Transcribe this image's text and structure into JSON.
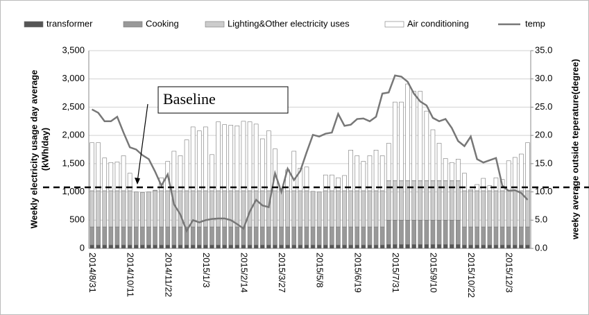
{
  "chart_data": {
    "type": "stacked_bar_line",
    "categories": [
      "2014/8/31",
      null,
      null,
      null,
      null,
      null,
      "2014/10/11",
      null,
      null,
      null,
      null,
      null,
      "2014/11/22",
      null,
      null,
      null,
      null,
      null,
      "2015/1/3",
      null,
      null,
      null,
      null,
      null,
      "2015/2/14",
      null,
      null,
      null,
      null,
      null,
      "2015/3/27",
      null,
      null,
      null,
      null,
      null,
      "2015/5/8",
      null,
      null,
      null,
      null,
      null,
      "2015/6/19",
      null,
      null,
      null,
      null,
      null,
      "2015/7/31",
      null,
      null,
      null,
      null,
      null,
      "2015/9/10",
      null,
      null,
      null,
      null,
      null,
      "2015/10/22",
      null,
      null,
      null,
      null,
      null,
      "2015/12/3",
      null,
      null,
      null
    ],
    "series": [
      {
        "name": "transformer",
        "color": "#555555",
        "values": [
          60,
          60,
          60,
          60,
          60,
          60,
          60,
          60,
          60,
          60,
          60,
          60,
          60,
          60,
          60,
          60,
          60,
          60,
          60,
          60,
          60,
          60,
          60,
          60,
          60,
          60,
          60,
          60,
          60,
          60,
          60,
          60,
          60,
          60,
          60,
          60,
          60,
          60,
          60,
          60,
          60,
          60,
          60,
          60,
          60,
          60,
          60,
          70,
          70,
          70,
          70,
          70,
          70,
          70,
          70,
          70,
          70,
          70,
          70,
          60,
          60,
          60,
          60,
          60,
          60,
          60,
          60,
          60,
          60,
          60
        ]
      },
      {
        "name": "Cooking",
        "color": "#999999",
        "values": [
          320,
          320,
          320,
          320,
          320,
          320,
          320,
          320,
          320,
          320,
          320,
          320,
          320,
          320,
          320,
          320,
          320,
          320,
          320,
          320,
          320,
          320,
          320,
          320,
          320,
          320,
          320,
          320,
          320,
          320,
          320,
          320,
          320,
          320,
          320,
          320,
          320,
          320,
          320,
          320,
          320,
          320,
          320,
          320,
          320,
          320,
          320,
          430,
          430,
          430,
          430,
          430,
          430,
          430,
          430,
          430,
          430,
          430,
          430,
          320,
          320,
          320,
          320,
          320,
          320,
          320,
          320,
          320,
          320,
          320
        ]
      },
      {
        "name": "Lighting&Other electricity uses",
        "color": "#cccccc",
        "values": [
          640,
          640,
          640,
          640,
          640,
          640,
          640,
          620,
          610,
          620,
          640,
          640,
          640,
          640,
          640,
          640,
          640,
          640,
          640,
          640,
          640,
          640,
          640,
          640,
          640,
          640,
          640,
          640,
          640,
          640,
          640,
          640,
          640,
          640,
          640,
          630,
          620,
          640,
          640,
          640,
          640,
          640,
          640,
          640,
          640,
          640,
          640,
          700,
          700,
          700,
          700,
          700,
          700,
          700,
          700,
          700,
          700,
          700,
          700,
          640,
          640,
          640,
          640,
          640,
          640,
          640,
          640,
          640,
          640,
          640
        ]
      },
      {
        "name": "Air conditioning",
        "color": "#ffffff",
        "values": [
          850,
          850,
          580,
          500,
          510,
          620,
          310,
          0,
          0,
          0,
          10,
          230,
          520,
          700,
          620,
          900,
          1130,
          1060,
          1130,
          640,
          1220,
          1170,
          1160,
          1150,
          1230,
          1220,
          1180,
          920,
          1060,
          740,
          40,
          370,
          700,
          400,
          420,
          0,
          0,
          280,
          280,
          230,
          270,
          720,
          620,
          520,
          620,
          720,
          620,
          660,
          1390,
          1390,
          1710,
          1580,
          1580,
          1230,
          900,
          660,
          390,
          320,
          380,
          310,
          20,
          110,
          220,
          90,
          230,
          200,
          530,
          590,
          650,
          850
        ]
      },
      {
        "name": "temp",
        "color": "#777777",
        "axis": "y2",
        "values": [
          24.6,
          24.0,
          22.5,
          22.5,
          23.3,
          20.5,
          17.9,
          17.5,
          16.5,
          15.8,
          13.6,
          11.1,
          13.1,
          7.8,
          6.0,
          3.1,
          5.0,
          4.6,
          5.0,
          5.2,
          5.3,
          5.3,
          5.0,
          4.3,
          3.5,
          6.5,
          8.6,
          7.6,
          7.3,
          13.3,
          10.0,
          14.1,
          12.1,
          13.7,
          17.0,
          20.1,
          19.8,
          20.3,
          20.5,
          23.8,
          21.7,
          21.9,
          22.9,
          23.0,
          22.5,
          23.3,
          27.4,
          27.6,
          30.6,
          30.4,
          29.5,
          27.4,
          26.0,
          25.3,
          23.1,
          22.5,
          22.9,
          21.3,
          19.0,
          18.1,
          19.8,
          15.8,
          15.2,
          15.6,
          16.0,
          11.1,
          10.2,
          10.3,
          9.8,
          8.6
        ]
      }
    ],
    "ylabel": [
      "Weekly electricity usage day average",
      "(kWh/day)"
    ],
    "y2label": "weeky  average outside teperature(degree)",
    "ylim": [
      0,
      3500
    ],
    "yticks": [
      0,
      500,
      {
        "value": 1000,
        "label": "1,000"
      },
      {
        "value": 1500,
        "label": "1,500"
      },
      {
        "value": 2000,
        "label": "2,000"
      },
      {
        "value": 2500,
        "label": "2,500"
      },
      {
        "value": 3000,
        "label": "3,000"
      },
      {
        "value": 3500,
        "label": "3,500"
      }
    ],
    "y2lim": [
      0,
      35
    ],
    "y2ticks": [
      {
        "value": 0,
        "label": "0.0"
      },
      {
        "value": 5,
        "label": "5.0"
      },
      {
        "value": 10,
        "label": "10.0"
      },
      {
        "value": 15,
        "label": "15.0"
      },
      {
        "value": 20,
        "label": "20.0"
      },
      {
        "value": 25,
        "label": "25.0"
      },
      {
        "value": 30,
        "label": "30.0"
      },
      {
        "value": 35,
        "label": "35.0"
      }
    ],
    "grid": true,
    "legend": "top",
    "annotation": {
      "text": "Baseline",
      "value": 1080
    }
  }
}
